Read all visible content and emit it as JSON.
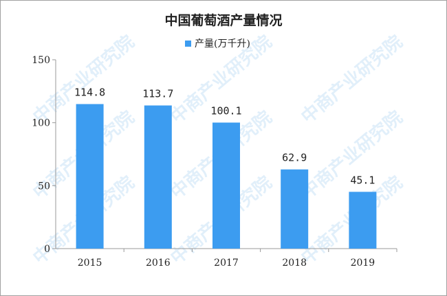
{
  "watermark": "中商产业研究院",
  "chart_data": {
    "type": "bar",
    "title": "中国葡萄酒产量情况",
    "categories": [
      "2015",
      "2016",
      "2017",
      "2018",
      "2019"
    ],
    "series": [
      {
        "name": "产量(万千升)",
        "values": [
          114.8,
          113.7,
          100.1,
          62.9,
          45.1
        ],
        "color": "#3c9cf0"
      }
    ],
    "data_labels": [
      "114.8",
      "113.7",
      "100.1",
      "62.9",
      "45.1"
    ],
    "ylim": [
      0,
      150
    ],
    "yticks": [
      0,
      50,
      100,
      150
    ],
    "ytick_labels": [
      "0",
      "50",
      "100",
      "150"
    ],
    "grid": false,
    "legend": "top-center"
  }
}
